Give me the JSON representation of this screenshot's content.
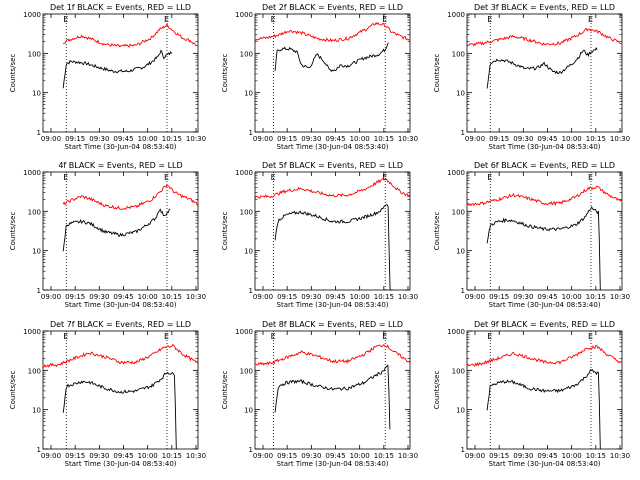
{
  "colors": {
    "events": "#000000",
    "lld": "#ff0000",
    "axis": "#000000",
    "background": "#ffffff"
  },
  "charts_common": {
    "ylabel": "Counts/sec",
    "xlabel": "Start Time (30-Jun-04 08:53:40)",
    "y_ticks": [
      1,
      10,
      100,
      1000
    ],
    "y_tick_labels": [
      "1",
      "10",
      "100",
      "1000"
    ],
    "ylim": [
      1,
      1000
    ],
    "x_tick_labels_col1": [
      "09:00",
      "09:15",
      "09:30",
      "09:45",
      "10:00",
      "10:15",
      "10:30"
    ],
    "x_tick_labels_col2": [
      "09:00",
      "09:15",
      "09:30",
      "09:45",
      "10:00",
      "10:15",
      "10:30"
    ],
    "x_tick_labels_col3": [
      "09:00",
      "09:15",
      "09:30",
      "09:45",
      "10:00",
      "10:15",
      "10:30"
    ],
    "marker_label_start": "E",
    "marker_label_end": "E"
  },
  "chart_data": [
    {
      "type": "line",
      "title": "Det 1f BLACK = Events, RED = LLD",
      "xlim": [
        0,
        100
      ],
      "markers": [
        15,
        80
      ],
      "series": [
        {
          "name": "Events",
          "color": "#000000",
          "x": [
            13,
            15,
            18,
            22,
            28,
            35,
            45,
            55,
            65,
            70,
            74,
            76,
            78,
            80,
            83
          ],
          "values": [
            13,
            55,
            62,
            60,
            55,
            45,
            35,
            35,
            45,
            60,
            80,
            115,
            80,
            90,
            105
          ]
        },
        {
          "name": "LLD",
          "color": "#ff0000",
          "x": [
            13,
            18,
            25,
            30,
            40,
            50,
            60,
            70,
            75,
            80,
            85,
            90,
            95,
            100
          ],
          "values": [
            190,
            230,
            280,
            240,
            170,
            150,
            160,
            250,
            400,
            520,
            350,
            250,
            210,
            150
          ]
        }
      ]
    },
    {
      "type": "line",
      "title": "Det 2f BLACK = Events, RED = LLD",
      "xlim": [
        0,
        100
      ],
      "markers": [
        12,
        84
      ],
      "series": [
        {
          "name": "Events",
          "color": "#000000",
          "x": [
            13,
            14,
            17,
            22,
            27,
            30,
            35,
            40,
            45,
            48,
            52,
            55,
            60,
            65,
            70,
            75,
            80,
            84,
            86
          ],
          "values": [
            33,
            110,
            130,
            130,
            110,
            50,
            42,
            95,
            60,
            38,
            38,
            50,
            48,
            60,
            75,
            85,
            95,
            125,
            200
          ]
        },
        {
          "name": "LLD",
          "color": "#ff0000",
          "x": [
            0,
            8,
            15,
            22,
            30,
            40,
            50,
            60,
            70,
            78,
            84,
            88,
            93,
            100
          ],
          "values": [
            230,
            250,
            290,
            380,
            330,
            240,
            210,
            240,
            380,
            580,
            520,
            350,
            280,
            220
          ]
        }
      ]
    },
    {
      "type": "line",
      "title": "Det 3f BLACK = Events, RED = LLD",
      "xlim": [
        0,
        100
      ],
      "markers": [
        15,
        80
      ],
      "series": [
        {
          "name": "Events",
          "color": "#000000",
          "x": [
            13,
            15,
            20,
            25,
            30,
            38,
            45,
            50,
            55,
            60,
            68,
            72,
            75,
            78,
            80,
            84
          ],
          "values": [
            13,
            58,
            70,
            65,
            55,
            40,
            42,
            55,
            35,
            32,
            55,
            80,
            120,
            90,
            110,
            130
          ]
        },
        {
          "name": "LLD",
          "color": "#ff0000",
          "x": [
            0,
            10,
            20,
            30,
            40,
            50,
            60,
            70,
            78,
            85,
            92,
            100
          ],
          "values": [
            160,
            180,
            220,
            270,
            220,
            170,
            180,
            270,
            420,
            350,
            240,
            180
          ]
        }
      ]
    },
    {
      "type": "line",
      "title": "4f BLACK = Events, RED = LLD",
      "xlim": [
        0,
        100
      ],
      "markers": [
        15,
        80
      ],
      "series": [
        {
          "name": "Events",
          "color": "#000000",
          "x": [
            13,
            15,
            20,
            25,
            30,
            40,
            50,
            60,
            65,
            70,
            73,
            75,
            78,
            80,
            82
          ],
          "values": [
            9,
            45,
            52,
            55,
            50,
            30,
            25,
            30,
            40,
            55,
            70,
            115,
            80,
            90,
            110
          ]
        },
        {
          "name": "LLD",
          "color": "#ff0000",
          "x": [
            13,
            18,
            25,
            30,
            40,
            50,
            60,
            70,
            76,
            80,
            85,
            90,
            95,
            100
          ],
          "values": [
            150,
            190,
            240,
            210,
            140,
            120,
            130,
            200,
            330,
            480,
            300,
            240,
            200,
            150
          ]
        }
      ]
    },
    {
      "type": "line",
      "title": "Det 5f BLACK = Events, RED = LLD",
      "xlim": [
        0,
        100
      ],
      "markers": [
        12,
        84
      ],
      "series": [
        {
          "name": "Events",
          "color": "#000000",
          "x": [
            13,
            15,
            20,
            25,
            30,
            40,
            50,
            60,
            70,
            78,
            82,
            85,
            86,
            87,
            89
          ],
          "values": [
            20,
            60,
            80,
            90,
            95,
            75,
            55,
            55,
            70,
            90,
            110,
            160,
            130,
            1,
            1
          ]
        },
        {
          "name": "LLD",
          "color": "#ff0000",
          "x": [
            0,
            10,
            20,
            30,
            40,
            50,
            60,
            70,
            78,
            84,
            88,
            93,
            100
          ],
          "values": [
            230,
            240,
            330,
            380,
            300,
            250,
            260,
            350,
            520,
            680,
            500,
            330,
            240
          ]
        }
      ]
    },
    {
      "type": "line",
      "title": "Det 6f BLACK = Events, RED = LLD",
      "xlim": [
        0,
        100
      ],
      "markers": [
        15,
        80
      ],
      "series": [
        {
          "name": "Events",
          "color": "#000000",
          "x": [
            13,
            15,
            20,
            25,
            30,
            40,
            50,
            60,
            70,
            76,
            80,
            84,
            85,
            86
          ],
          "values": [
            15,
            45,
            55,
            60,
            58,
            42,
            35,
            35,
            45,
            70,
            125,
            95,
            95,
            1
          ]
        },
        {
          "name": "LLD",
          "color": "#ff0000",
          "x": [
            0,
            10,
            20,
            30,
            40,
            50,
            60,
            70,
            78,
            84,
            90,
            100
          ],
          "values": [
            150,
            160,
            200,
            260,
            210,
            160,
            160,
            230,
            380,
            420,
            280,
            170
          ]
        }
      ]
    },
    {
      "type": "line",
      "title": "Det 7f BLACK = Events, RED = LLD",
      "xlim": [
        0,
        100
      ],
      "markers": [
        15,
        80
      ],
      "series": [
        {
          "name": "Events",
          "color": "#000000",
          "x": [
            13,
            15,
            20,
            25,
            30,
            40,
            50,
            60,
            70,
            76,
            80,
            84,
            85,
            86
          ],
          "values": [
            8,
            40,
            45,
            52,
            50,
            35,
            28,
            30,
            40,
            60,
            90,
            80,
            80,
            1
          ]
        },
        {
          "name": "LLD",
          "color": "#ff0000",
          "x": [
            0,
            10,
            20,
            30,
            40,
            50,
            60,
            70,
            78,
            84,
            90,
            100
          ],
          "values": [
            130,
            140,
            200,
            280,
            220,
            160,
            160,
            240,
            380,
            420,
            260,
            150
          ]
        }
      ]
    },
    {
      "type": "line",
      "title": "Det 8f BLACK = Events, RED = LLD",
      "xlim": [
        0,
        100
      ],
      "markers": [
        12,
        84
      ],
      "series": [
        {
          "name": "Events",
          "color": "#000000",
          "x": [
            13,
            15,
            20,
            25,
            30,
            40,
            50,
            60,
            70,
            78,
            82,
            85,
            86,
            87
          ],
          "values": [
            9,
            40,
            48,
            52,
            52,
            40,
            33,
            35,
            48,
            75,
            90,
            130,
            120,
            3
          ]
        },
        {
          "name": "LLD",
          "color": "#ff0000",
          "x": [
            0,
            10,
            20,
            30,
            40,
            50,
            60,
            70,
            78,
            84,
            90,
            100
          ],
          "values": [
            140,
            150,
            210,
            290,
            230,
            170,
            170,
            250,
            400,
            450,
            290,
            160
          ]
        }
      ]
    },
    {
      "type": "line",
      "title": "Det 9f BLACK = Events, RED = LLD",
      "xlim": [
        0,
        100
      ],
      "markers": [
        15,
        80
      ],
      "series": [
        {
          "name": "Events",
          "color": "#000000",
          "x": [
            13,
            15,
            20,
            25,
            30,
            40,
            50,
            60,
            70,
            76,
            80,
            84,
            85,
            86
          ],
          "values": [
            10,
            40,
            48,
            52,
            50,
            35,
            30,
            30,
            42,
            65,
            100,
            85,
            85,
            1
          ]
        },
        {
          "name": "LLD",
          "color": "#ff0000",
          "x": [
            0,
            10,
            20,
            30,
            40,
            50,
            60,
            70,
            78,
            84,
            90,
            100
          ],
          "values": [
            130,
            150,
            200,
            270,
            210,
            160,
            160,
            240,
            380,
            400,
            260,
            150
          ]
        }
      ]
    }
  ]
}
